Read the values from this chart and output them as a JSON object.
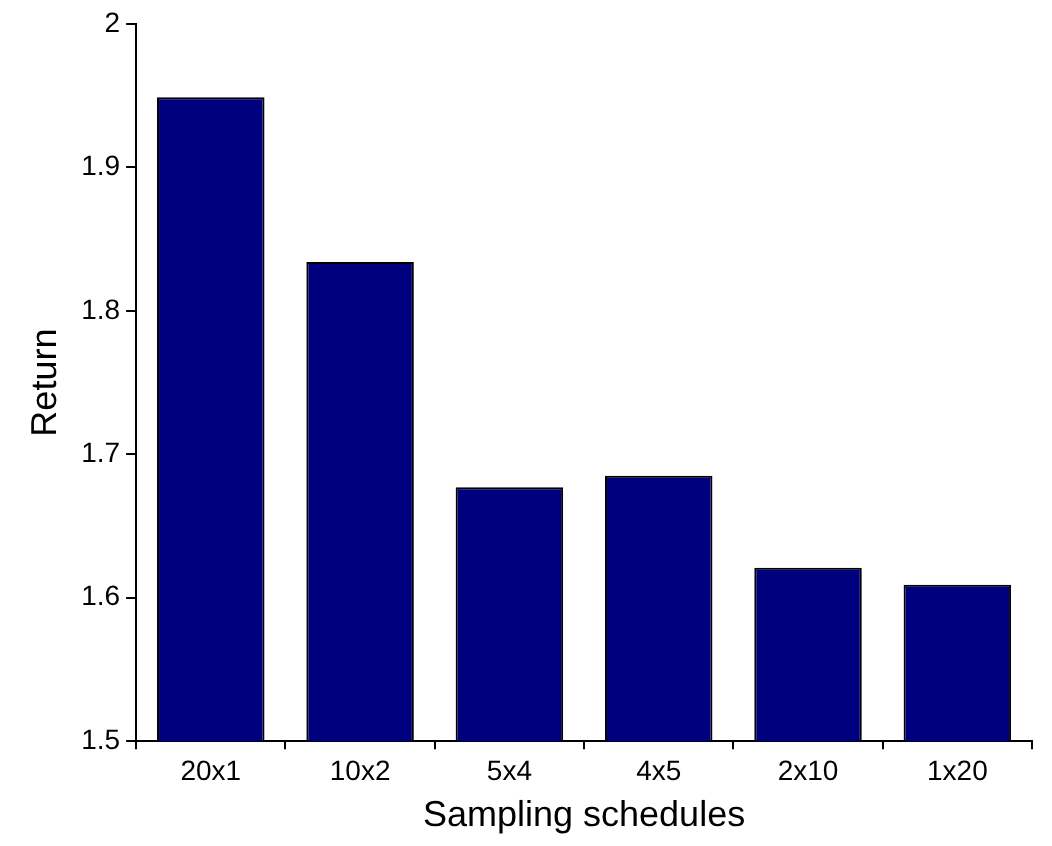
{
  "chart_data": {
    "type": "bar",
    "xlabel": "Sampling schedules",
    "ylabel": "Return",
    "categories": [
      "20x1",
      "10x2",
      "5x4",
      "4x5",
      "2x10",
      "1x20"
    ],
    "values": [
      1.949,
      1.834,
      1.677,
      1.685,
      1.621,
      1.609
    ],
    "color": "#00007f",
    "ylim": [
      1.5,
      2
    ],
    "yticks": [
      1.5,
      1.6,
      1.7,
      1.8,
      1.9,
      2
    ],
    "legend": false
  }
}
